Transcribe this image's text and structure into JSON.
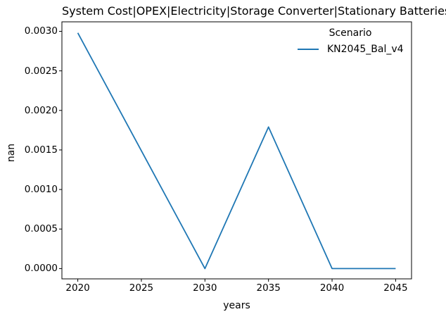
{
  "chart_data": {
    "type": "line",
    "title": "System Cost|OPEX|Electricity|Storage Converter|Stationary Batteries",
    "xlabel": "years",
    "ylabel": "nan",
    "x": [
      2020,
      2025,
      2030,
      2035,
      2040,
      2045
    ],
    "series": [
      {
        "name": "KN2045_Bal_v4",
        "color": "#1f77b4",
        "values": [
          0.00298,
          0.00149,
          0.0,
          0.00179,
          0.0,
          0.0
        ]
      }
    ],
    "xticks": [
      2020,
      2025,
      2030,
      2035,
      2040,
      2045
    ],
    "yticks": [
      0.0,
      0.0005,
      0.001,
      0.0015,
      0.002,
      0.0025,
      0.003
    ],
    "ytick_labels": [
      "0.0000",
      "0.0005",
      "0.0010",
      "0.0015",
      "0.0020",
      "0.0025",
      "0.0030"
    ],
    "xlim": [
      2018.75,
      2046.25
    ],
    "ylim": [
      -0.00013,
      0.00312
    ],
    "grid": false,
    "legend": {
      "title": "Scenario",
      "position": "upper right",
      "frame": false
    },
    "colors": {
      "spine": "#000000",
      "text": "#000000",
      "background": "#ffffff"
    }
  }
}
